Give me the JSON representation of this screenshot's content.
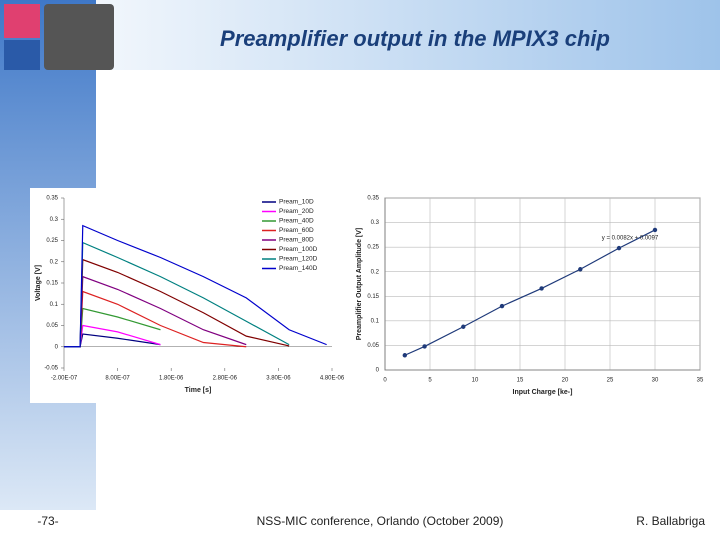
{
  "title": "Preamplifier output in the MPIX3 chip",
  "footer": {
    "page": "-73-",
    "conference": "NSS-MIC conference, Orlando (October 2009)",
    "author": "R. Ballabriga"
  },
  "chart_data": [
    {
      "type": "line",
      "x_label": "Time [s]",
      "y_label": "Voltage [V]",
      "x": [
        -2e-07,
        1e-07,
        1.5e-07,
        8e-07,
        1.6e-06,
        2.4e-06,
        3.2e-06,
        4e-06,
        4.7e-06
      ],
      "xlim": [
        -2e-07,
        4.8e-06
      ],
      "xticks": [
        {
          "value": -2e-07,
          "label": "-2.00E-07"
        },
        {
          "value": 8e-07,
          "label": "8.00E-07"
        },
        {
          "value": 1.8e-06,
          "label": "1.80E-06"
        },
        {
          "value": 2.8e-06,
          "label": "2.80E-06"
        },
        {
          "value": 3.8e-06,
          "label": "3.80E-06"
        },
        {
          "value": 4.8e-06,
          "label": "4.80E-06"
        }
      ],
      "ylim": [
        -0.05,
        0.35
      ],
      "yticks": [
        -0.05,
        0,
        0.05,
        0.1,
        0.15,
        0.2,
        0.25,
        0.3,
        0.35
      ],
      "grid": false,
      "legend": "upper-right",
      "series": [
        {
          "name": "Pream_10D",
          "color": "#000080",
          "values": [
            0,
            0,
            0.03,
            0.02,
            0.005,
            null,
            null,
            null,
            null
          ]
        },
        {
          "name": "Pream_20D",
          "color": "#ff00ff",
          "values": [
            0,
            0,
            0.05,
            0.035,
            0.005,
            null,
            null,
            null,
            null
          ]
        },
        {
          "name": "Pream_40D",
          "color": "#339933",
          "values": [
            0,
            0,
            0.09,
            0.07,
            0.04,
            null,
            null,
            null,
            null
          ]
        },
        {
          "name": "Pream_60D",
          "color": "#dd2222",
          "values": [
            0,
            0,
            0.13,
            0.1,
            0.05,
            0.01,
            0,
            null,
            null
          ]
        },
        {
          "name": "Pream_80D",
          "color": "#800080",
          "values": [
            0,
            0,
            0.165,
            0.135,
            0.09,
            0.04,
            0.005,
            null,
            null
          ]
        },
        {
          "name": "Pream_100D",
          "color": "#800000",
          "values": [
            0,
            0,
            0.205,
            0.175,
            0.13,
            0.08,
            0.025,
            0.002,
            null
          ]
        },
        {
          "name": "Pream_120D",
          "color": "#008080",
          "values": [
            0,
            0,
            0.245,
            0.21,
            0.165,
            0.115,
            0.06,
            0.005,
            null
          ]
        },
        {
          "name": "Pream_140D",
          "color": "#0000cc",
          "values": [
            0,
            0,
            0.285,
            0.25,
            0.21,
            0.165,
            0.115,
            0.04,
            0.005
          ]
        }
      ]
    },
    {
      "type": "line",
      "x_label": "Input Charge [ke-]",
      "y_label": "Preamplifier Output Amplitude [V]",
      "x": [
        2.2,
        4.4,
        8.7,
        13,
        17.4,
        21.7,
        26,
        30
      ],
      "values": [
        0.03,
        0.048,
        0.088,
        0.13,
        0.166,
        0.205,
        0.248,
        0.285
      ],
      "color": "#1f3a7a",
      "markers": true,
      "annotation": "y = 0.0082x + 0.0097",
      "xlim": [
        0,
        35
      ],
      "xticks": [
        0,
        5,
        10,
        15,
        20,
        25,
        30,
        35
      ],
      "ylim": [
        0,
        0.35
      ],
      "yticks": [
        0,
        0.05,
        0.1,
        0.15,
        0.2,
        0.25,
        0.3,
        0.35
      ],
      "grid": true
    }
  ]
}
